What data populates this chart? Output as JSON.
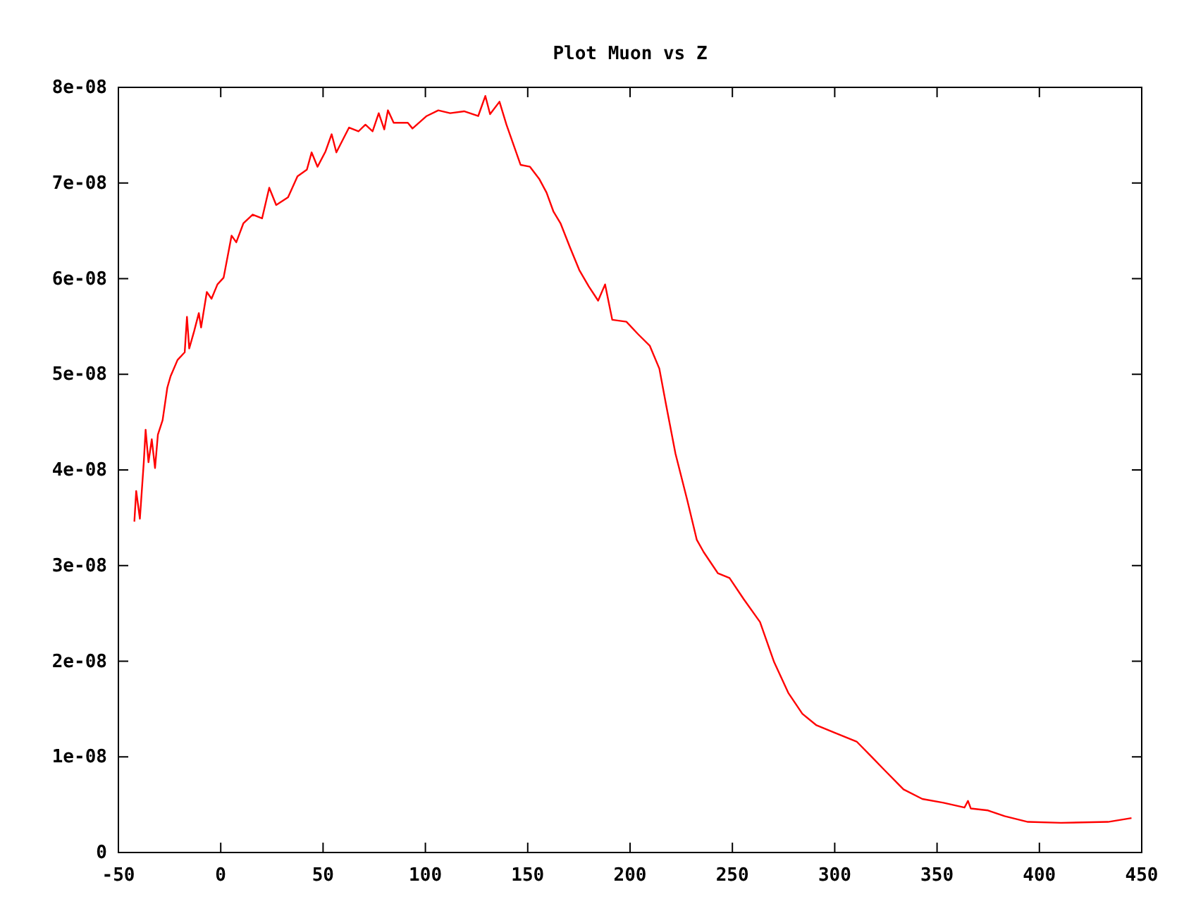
{
  "chart_data": {
    "type": "line",
    "title": "Plot Muon vs Z",
    "xlim": [
      -50,
      450
    ],
    "xticks": [
      -50,
      0,
      50,
      100,
      150,
      200,
      250,
      300,
      350,
      400,
      450
    ],
    "ylim": [
      0,
      8e-08
    ],
    "yticks": [
      0,
      {
        "value": 1e-08,
        "label": "1e-08"
      },
      {
        "value": 2e-08,
        "label": "2e-08"
      },
      {
        "value": 3e-08,
        "label": "3e-08"
      },
      {
        "value": 4e-08,
        "label": "4e-08"
      },
      {
        "value": 5e-08,
        "label": "5e-08"
      },
      {
        "value": 6e-08,
        "label": "6e-08"
      },
      {
        "value": 7e-08,
        "label": "7e-08"
      },
      {
        "value": 8e-08,
        "label": "8e-08"
      }
    ],
    "grid": false,
    "marker": "none",
    "line_style": "solid",
    "series": [
      {
        "color": "#ff0000",
        "x": [
          -42.2,
          -41.3,
          -39.5,
          -37.6,
          -36.7,
          -35.3,
          -33.7,
          -32.1,
          -30.7,
          -28.4,
          -26.1,
          -24.5,
          -21.1,
          -17.6,
          -16.5,
          -15.4,
          -13.0,
          -10.7,
          -9.6,
          -6.8,
          -4.5,
          -1.6,
          1.4,
          5.3,
          7.6,
          11.1,
          15.6,
          20.2,
          23.7,
          27.1,
          32.9,
          37.5,
          42.1,
          44.4,
          47.3,
          51.2,
          54.2,
          56.5,
          62.7,
          67.3,
          70.7,
          74.2,
          77.2,
          79.9,
          81.7,
          84.5,
          91.4,
          93.7,
          100.6,
          106.3,
          112.1,
          118.9,
          125.8,
          129.3,
          131.6,
          136.2,
          139.6,
          146.5,
          151.1,
          155.7,
          159.2,
          162.6,
          166.0,
          170.6,
          175.2,
          179.8,
          184.4,
          187.8,
          191.3,
          198.2,
          203.9,
          209.6,
          214.3,
          217.7,
          222.2,
          228.0,
          232.6,
          236.0,
          242.9,
          248.6,
          255.5,
          263.5,
          270.4,
          277.3,
          284.2,
          291.1,
          300.3,
          310.7,
          317.6,
          324.4,
          333.6,
          342.8,
          353.1,
          363.4,
          365.1,
          366.5,
          374.9,
          383.0,
          394.4,
          410.5,
          433.5,
          445.0
        ],
        "values": [
          3.46e-08,
          3.78e-08,
          3.49e-08,
          4.08e-08,
          4.42e-08,
          4.08e-08,
          4.32e-08,
          4.02e-08,
          4.37e-08,
          4.52e-08,
          4.86e-08,
          4.98e-08,
          5.15e-08,
          5.23e-08,
          5.6e-08,
          5.27e-08,
          5.45e-08,
          5.64e-08,
          5.49e-08,
          5.86e-08,
          5.79e-08,
          5.94e-08,
          6.01e-08,
          6.45e-08,
          6.38e-08,
          6.58e-08,
          6.67e-08,
          6.63e-08,
          6.95e-08,
          6.77e-08,
          6.85e-08,
          7.07e-08,
          7.14e-08,
          7.32e-08,
          7.17e-08,
          7.33e-08,
          7.51e-08,
          7.32e-08,
          7.58e-08,
          7.54e-08,
          7.61e-08,
          7.54e-08,
          7.73e-08,
          7.56e-08,
          7.76e-08,
          7.63e-08,
          7.63e-08,
          7.57e-08,
          7.7e-08,
          7.76e-08,
          7.73e-08,
          7.75e-08,
          7.7e-08,
          7.91e-08,
          7.72e-08,
          7.85e-08,
          7.61e-08,
          7.19e-08,
          7.17e-08,
          7.04e-08,
          6.9e-08,
          6.7e-08,
          6.58e-08,
          6.33e-08,
          6.09e-08,
          5.92e-08,
          5.77e-08,
          5.94e-08,
          5.57e-08,
          5.55e-08,
          5.42e-08,
          5.3e-08,
          5.06e-08,
          4.67e-08,
          4.17e-08,
          3.68e-08,
          3.27e-08,
          3.14e-08,
          2.92e-08,
          2.87e-08,
          2.65e-08,
          2.41e-08,
          1.99e-08,
          1.67e-08,
          1.45e-08,
          1.33e-08,
          1.25e-08,
          1.16e-08,
          1.01e-08,
          8.6e-09,
          6.6e-09,
          5.6e-09,
          5.2e-09,
          4.7e-09,
          5.4e-09,
          4.6e-09,
          4.4e-09,
          3.8e-09,
          3.2e-09,
          3.1e-09,
          3.2e-09,
          3.6e-09
        ]
      }
    ]
  }
}
